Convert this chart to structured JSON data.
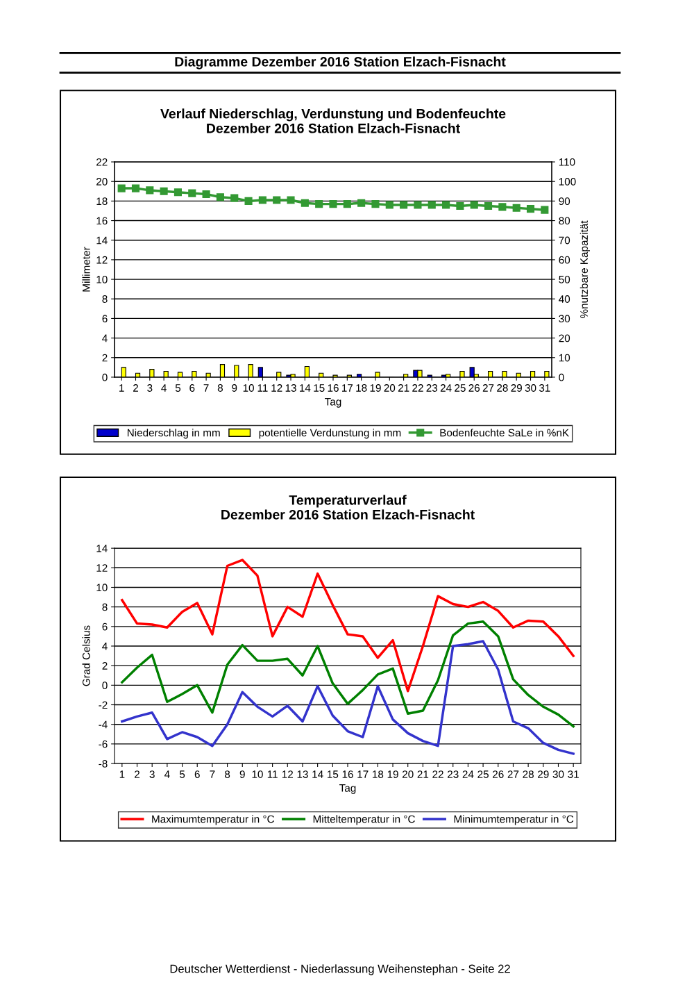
{
  "chart_data": [
    {
      "type": "bar",
      "title": "Verlauf Niederschlag, Verdunstung und Bodenfeuchte\nDezember 2016 Station Elzach-Fisnacht",
      "xlabel": "Tag",
      "ylabel": "Millimeter",
      "y2label": "%nutzbare Kapazität",
      "annotations": [
        "Diagramme Dezember 2016 Station Elzach-Fisnacht"
      ],
      "categories": [
        "1",
        "2",
        "3",
        "4",
        "5",
        "6",
        "7",
        "8",
        "9",
        "10",
        "11",
        "12",
        "13",
        "14",
        "15",
        "16",
        "17",
        "18",
        "19",
        "20",
        "21",
        "22",
        "23",
        "24",
        "25",
        "26",
        "27",
        "28",
        "29",
        "30",
        "31"
      ],
      "series": [
        {
          "name": "Niederschlag in mm",
          "type": "bar",
          "color": "#0000cc",
          "values": [
            0,
            0,
            0,
            0,
            0,
            0,
            0,
            0,
            0,
            0,
            1.0,
            0,
            0.2,
            0,
            0,
            0,
            null,
            0.3,
            0,
            0,
            0,
            0.7,
            0.2,
            0.2,
            0,
            1.0,
            0,
            0,
            0,
            0,
            0
          ]
        },
        {
          "name": "potentielle Verdunstung in mm",
          "type": "bar",
          "color": "#ffff00",
          "values": [
            1.0,
            0.4,
            0.8,
            0.6,
            0.5,
            0.6,
            0.4,
            1.3,
            1.2,
            1.3,
            null,
            0.5,
            0.3,
            1.1,
            0.4,
            0.2,
            0.2,
            0,
            0.5,
            null,
            0.3,
            0.7,
            null,
            0.3,
            0.6,
            0.3,
            0.6,
            0.6,
            0.4,
            0.6,
            0.6
          ]
        },
        {
          "name": "Bodenfeuchte SaLe in %nK",
          "type": "line",
          "axis": "y2",
          "marker": "square",
          "color": "#339933",
          "values": [
            96.5,
            96.5,
            95.5,
            95,
            94.5,
            94,
            93.5,
            92,
            91.5,
            90,
            90.5,
            90.5,
            90.5,
            89,
            88.5,
            88.5,
            88.5,
            89,
            88.5,
            88,
            88,
            88,
            88,
            88,
            87.5,
            88,
            87.5,
            87,
            86.5,
            86,
            85.5
          ]
        }
      ],
      "ylim": [
        0,
        22
      ],
      "yticks": [
        0,
        2,
        4,
        6,
        8,
        10,
        12,
        14,
        16,
        18,
        20,
        22
      ],
      "y2lim": [
        0,
        110
      ],
      "y2ticks": [
        0,
        10,
        20,
        30,
        40,
        50,
        60,
        70,
        80,
        90,
        100,
        110
      ],
      "grid": "y",
      "legend": "bottom"
    },
    {
      "type": "line",
      "title": "Temperaturverlauf\nDezember 2016 Station Elzach-Fisnacht",
      "xlabel": "Tag",
      "ylabel": "Grad Celsius",
      "annotations": [
        "Deutscher Wetterdienst - Niederlassung Weihenstephan - Seite 22"
      ],
      "categories": [
        "1",
        "2",
        "3",
        "4",
        "5",
        "6",
        "7",
        "8",
        "9",
        "10",
        "11",
        "12",
        "13",
        "14",
        "15",
        "16",
        "17",
        "18",
        "19",
        "20",
        "21",
        "22",
        "23",
        "24",
        "25",
        "26",
        "27",
        "28",
        "29",
        "30",
        "31"
      ],
      "series": [
        {
          "name": "Maximumtemperatur in °C",
          "color": "#ff0000",
          "values": [
            8.7,
            6.3,
            6.2,
            5.9,
            7.5,
            8.4,
            5.2,
            12.2,
            12.8,
            11.2,
            5.0,
            8.0,
            7.0,
            11.4,
            8.2,
            5.2,
            5.0,
            2.8,
            4.6,
            -0.6,
            4.0,
            9.1,
            8.3,
            8.0,
            8.5,
            7.6,
            5.9,
            6.6,
            6.5,
            5.0,
            3.0
          ]
        },
        {
          "name": "Mitteltemperatur in °C",
          "color": "#008000",
          "values": [
            0.3,
            1.8,
            3.1,
            -1.7,
            -0.9,
            0.0,
            -2.8,
            2.1,
            4.1,
            2.5,
            2.5,
            2.7,
            1.0,
            4.0,
            0.2,
            -1.9,
            -0.5,
            1.1,
            1.7,
            -2.9,
            -2.6,
            0.5,
            5.1,
            6.3,
            6.5,
            5.0,
            0.6,
            -1.0,
            -2.2,
            -3.0,
            -4.2
          ]
        },
        {
          "name": "Minimumtemperatur in °C",
          "color": "#3333cc",
          "values": [
            -3.7,
            -3.2,
            -2.8,
            -5.5,
            -4.8,
            -5.3,
            -6.2,
            -4.0,
            -0.7,
            -2.2,
            -3.2,
            -2.1,
            -3.7,
            -0.1,
            -3.1,
            -4.7,
            -5.3,
            -0.1,
            -3.5,
            -4.9,
            -5.7,
            -6.2,
            4.0,
            4.2,
            4.5,
            1.6,
            -3.7,
            -4.4,
            -5.9,
            -6.6,
            -7.0
          ]
        }
      ],
      "ylim": [
        -8,
        14
      ],
      "yticks": [
        -8,
        -6,
        -4,
        -2,
        0,
        2,
        4,
        6,
        8,
        10,
        12,
        14
      ],
      "marker": "none",
      "grid": "y",
      "legend": "bottom"
    }
  ]
}
